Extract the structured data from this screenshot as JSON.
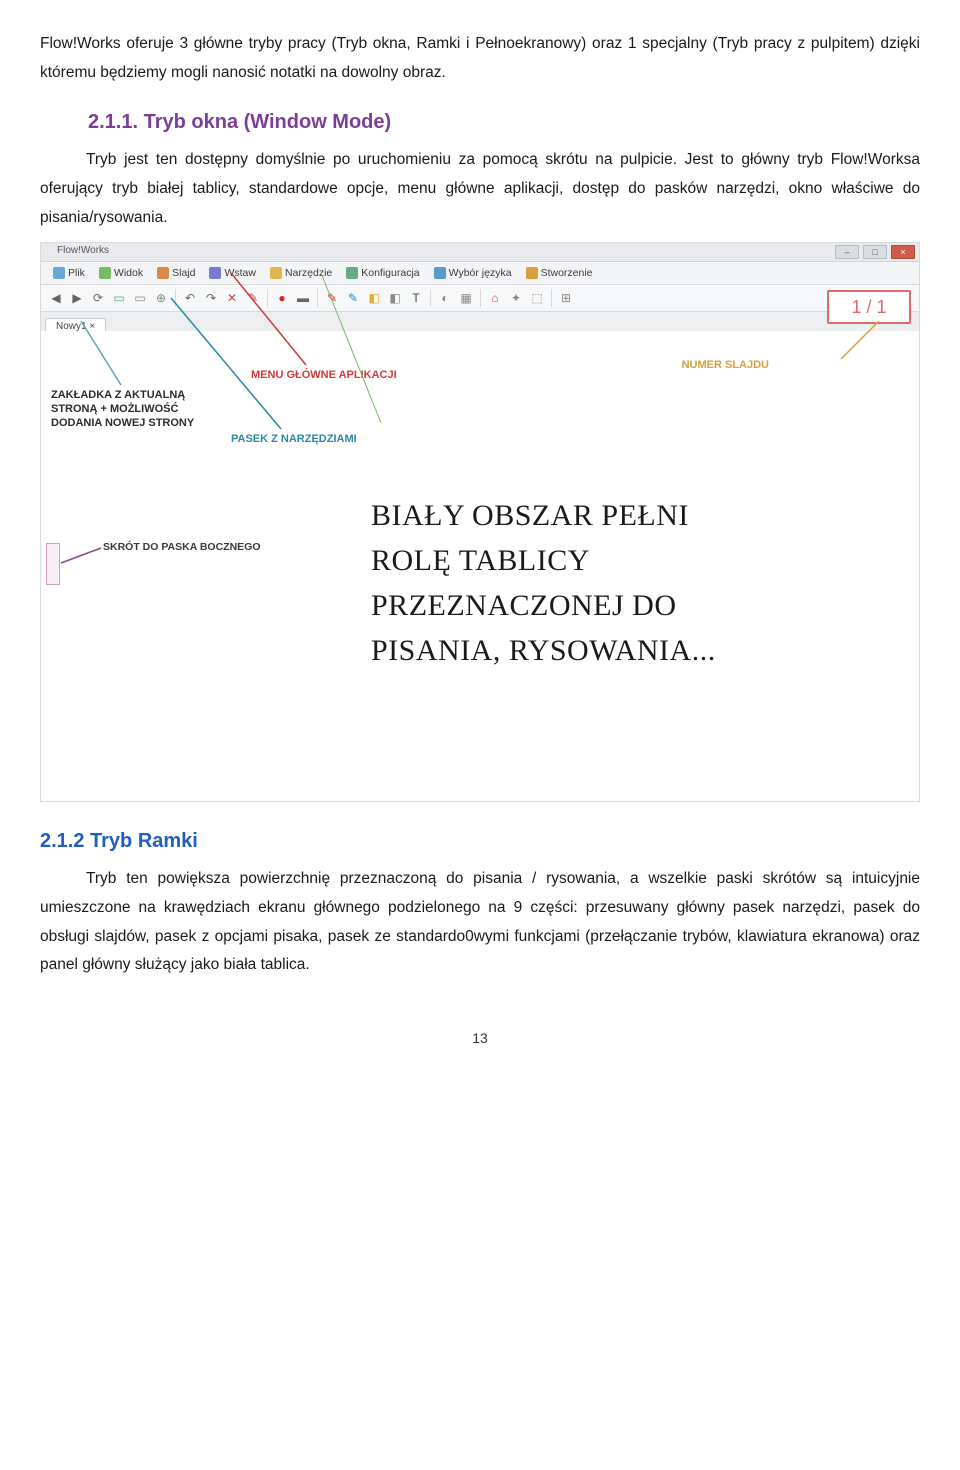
{
  "intro": "Flow!Works oferuje 3 główne tryby pracy (Tryb okna, Ramki i Pełnoekranowy) oraz 1 specjalny (Tryb pracy z pulpitem) dzięki któremu będziemy mogli nanosić notatki na dowolny obraz.",
  "section1": {
    "number_title": "2.1.1.    Tryb okna (Window Mode)",
    "color": "#7b3f99",
    "body": "Tryb jest ten dostępny domyślnie po uruchomieniu za pomocą skrótu na pulpicie. Jest to główny tryb Flow!Worksa oferujący tryb białej tablicy, standardowe opcje, menu główne aplikacji, dostęp do pasków narzędzi, okno właściwe do pisania/rysowania."
  },
  "screenshot": {
    "titlebar_label": "Flow!Works",
    "menubar": [
      {
        "label": "Plik",
        "color": "#6aa9d6"
      },
      {
        "label": "Widok",
        "color": "#7ab86a"
      },
      {
        "label": "Slajd",
        "color": "#d98a4a"
      },
      {
        "label": "Wstaw",
        "color": "#7a7ad0"
      },
      {
        "label": "Narzędzie",
        "color": "#e0b84a"
      },
      {
        "label": "Konfiguracja",
        "color": "#6aa888"
      },
      {
        "label": "Wybór języka",
        "color": "#5a9ac8"
      },
      {
        "label": "Stworzenie",
        "color": "#d9a03a"
      }
    ],
    "toolbar_icons": [
      {
        "glyph": "◀",
        "color": "#666"
      },
      {
        "glyph": "▶",
        "color": "#666"
      },
      {
        "glyph": "⟳",
        "color": "#666"
      },
      {
        "glyph": "▭",
        "color": "#5a8"
      },
      {
        "glyph": "▭",
        "color": "#888"
      },
      {
        "glyph": "⊕",
        "color": "#888"
      },
      {
        "glyph": "sep"
      },
      {
        "glyph": "↶",
        "color": "#666"
      },
      {
        "glyph": "↷",
        "color": "#666"
      },
      {
        "glyph": "✕",
        "color": "#c44"
      },
      {
        "glyph": "✎",
        "color": "#c44"
      },
      {
        "glyph": "sep"
      },
      {
        "glyph": "●",
        "color": "#d22"
      },
      {
        "glyph": "▬",
        "color": "#666"
      },
      {
        "glyph": "sep"
      },
      {
        "glyph": "✎",
        "color": "#d22"
      },
      {
        "glyph": "✎",
        "color": "#28c"
      },
      {
        "glyph": "◧",
        "color": "#e0b030"
      },
      {
        "glyph": "◧",
        "color": "#888"
      },
      {
        "glyph": "T",
        "color": "#444"
      },
      {
        "glyph": "sep"
      },
      {
        "glyph": "◐",
        "color": "#888"
      },
      {
        "glyph": "▦",
        "color": "#888"
      },
      {
        "glyph": "sep"
      },
      {
        "glyph": "⌂",
        "color": "#c44"
      },
      {
        "glyph": "✦",
        "color": "#888"
      },
      {
        "glyph": "⬚",
        "color": "#888"
      },
      {
        "glyph": "sep"
      },
      {
        "glyph": "⊞",
        "color": "#888"
      }
    ],
    "tab_label": "Nowy1   ×",
    "slide_counter": "1 / 1",
    "annotations": {
      "menu": "MENU GŁÓWNE APLIKACJI",
      "tab": "ZAKŁADKA Z AKTUALNĄ STRONĄ + MOŻLIWOŚĆ DODANIA NOWEJ STRONY",
      "toolbar": "PASEK Z NARZĘDZIAMI",
      "slide": "NUMER SLAJDU",
      "side": "SKRÓT DO PASKA BOCZNEGO"
    },
    "annotation_colors": {
      "menu_line": "#d13a3a",
      "tab_line": "#5aa6b8",
      "toolbar_line": "#2a8aa6",
      "slide_line": "#d9a03a",
      "side_line": "#8a4a8a"
    },
    "handwritten_lines": [
      "BIAŁY OBSZAR PEŁNI",
      "ROLĘ TABLICY",
      "PRZEZNACZONEJ DO",
      "PISANIA, RYSOWANIA..."
    ]
  },
  "section2": {
    "title": "2.1.2 Tryb Ramki",
    "color": "#1f5fbf",
    "body": "Tryb ten powiększa powierzchnię przeznaczoną do pisania / rysowania, a wszelkie paski skrótów są intuicyjnie umieszczone na krawędziach ekranu głównego podzielonego na 9 części: przesuwany główny pasek narzędzi, pasek do obsługi slajdów, pasek z opcjami pisaka, pasek ze standardo0wymi funkcjami (przełączanie trybów, klawiatura ekranowa) oraz panel główny służący jako biała tablica."
  },
  "page_number": "13"
}
